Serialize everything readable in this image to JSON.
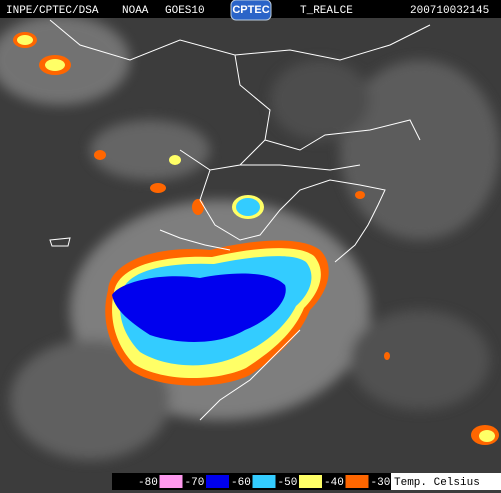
{
  "header": {
    "source": "INPE/CPTEC/DSA",
    "satellite": "NOAA",
    "sensor": "GOES10",
    "logo": "CPTEC",
    "product": "T_REALCE",
    "timestamp": "200710032145"
  },
  "legend": {
    "items": [
      {
        "value": -80,
        "color": "#000000"
      },
      {
        "value": -70,
        "color": "#ff99ee"
      },
      {
        "value": -60,
        "color": "#0000ee"
      },
      {
        "value": -50,
        "color": "#33ccff"
      },
      {
        "value": -40,
        "color": "#ffff66"
      },
      {
        "value": -30,
        "color": "#ff6600"
      }
    ],
    "unit_label": "Temp. Celsius"
  }
}
